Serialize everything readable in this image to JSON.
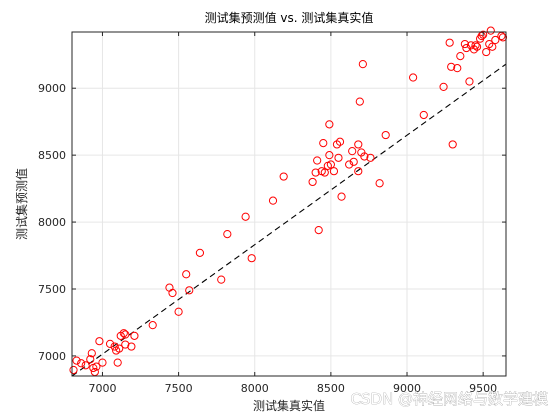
{
  "chart_data": {
    "type": "scatter",
    "title": "测试集预测值 vs. 测试集真实值",
    "xlabel": "测试集真实值",
    "ylabel": "测试集预测值",
    "xlim": [
      6800,
      9650
    ],
    "ylim": [
      6850,
      9420
    ],
    "xticks": [
      7000,
      7500,
      8000,
      8500,
      9000,
      9500
    ],
    "yticks": [
      7000,
      7500,
      8000,
      8500,
      9000
    ],
    "grid": true,
    "marker_color": "#ff0000",
    "line_color": "#000000",
    "series": [
      {
        "marker": "circle",
        "points": [
          [
            6810,
            6895
          ],
          [
            6830,
            6965
          ],
          [
            6860,
            6945
          ],
          [
            6890,
            6930
          ],
          [
            6920,
            6975
          ],
          [
            6930,
            7020
          ],
          [
            6940,
            6910
          ],
          [
            6950,
            6880
          ],
          [
            6960,
            6920
          ],
          [
            6980,
            7110
          ],
          [
            7000,
            6950
          ],
          [
            7050,
            7090
          ],
          [
            7080,
            7070
          ],
          [
            7090,
            7040
          ],
          [
            7100,
            6950
          ],
          [
            7110,
            7055
          ],
          [
            7120,
            7150
          ],
          [
            7140,
            7170
          ],
          [
            7150,
            7160
          ],
          [
            7150,
            7085
          ],
          [
            7190,
            7070
          ],
          [
            7210,
            7150
          ],
          [
            7330,
            7230
          ],
          [
            7440,
            7510
          ],
          [
            7460,
            7470
          ],
          [
            7500,
            7330
          ],
          [
            7550,
            7610
          ],
          [
            7570,
            7490
          ],
          [
            7640,
            7770
          ],
          [
            7780,
            7570
          ],
          [
            7820,
            7910
          ],
          [
            7940,
            8040
          ],
          [
            7980,
            7730
          ],
          [
            8120,
            8160
          ],
          [
            8190,
            8340
          ],
          [
            8380,
            8300
          ],
          [
            8400,
            8370
          ],
          [
            8410,
            8460
          ],
          [
            8420,
            7940
          ],
          [
            8440,
            8380
          ],
          [
            8450,
            8590
          ],
          [
            8460,
            8370
          ],
          [
            8480,
            8420
          ],
          [
            8490,
            8500
          ],
          [
            8490,
            8730
          ],
          [
            8500,
            8430
          ],
          [
            8520,
            8380
          ],
          [
            8540,
            8580
          ],
          [
            8550,
            8480
          ],
          [
            8560,
            8600
          ],
          [
            8570,
            8190
          ],
          [
            8620,
            8430
          ],
          [
            8640,
            8530
          ],
          [
            8650,
            8450
          ],
          [
            8680,
            8580
          ],
          [
            8680,
            8380
          ],
          [
            8690,
            8900
          ],
          [
            8700,
            8520
          ],
          [
            8710,
            9180
          ],
          [
            8720,
            8490
          ],
          [
            8760,
            8480
          ],
          [
            8820,
            8290
          ],
          [
            8860,
            8650
          ],
          [
            9040,
            9080
          ],
          [
            9110,
            8800
          ],
          [
            9240,
            9010
          ],
          [
            9280,
            9340
          ],
          [
            9290,
            9160
          ],
          [
            9300,
            8580
          ],
          [
            9330,
            9150
          ],
          [
            9350,
            9240
          ],
          [
            9380,
            9330
          ],
          [
            9390,
            9300
          ],
          [
            9410,
            9050
          ],
          [
            9420,
            9320
          ],
          [
            9440,
            9290
          ],
          [
            9450,
            9320
          ],
          [
            9460,
            9310
          ],
          [
            9480,
            9370
          ],
          [
            9490,
            9390
          ],
          [
            9500,
            9400
          ],
          [
            9520,
            9270
          ],
          [
            9540,
            9330
          ],
          [
            9550,
            9430
          ],
          [
            9560,
            9310
          ],
          [
            9580,
            9360
          ],
          [
            9620,
            9390
          ],
          [
            9630,
            9380
          ]
        ]
      },
      {
        "marker": "dashed-line",
        "points": [
          [
            6800,
            6850
          ],
          [
            9650,
            9180
          ]
        ]
      }
    ]
  },
  "watermark": "CSDN @神经网络与数学建模"
}
